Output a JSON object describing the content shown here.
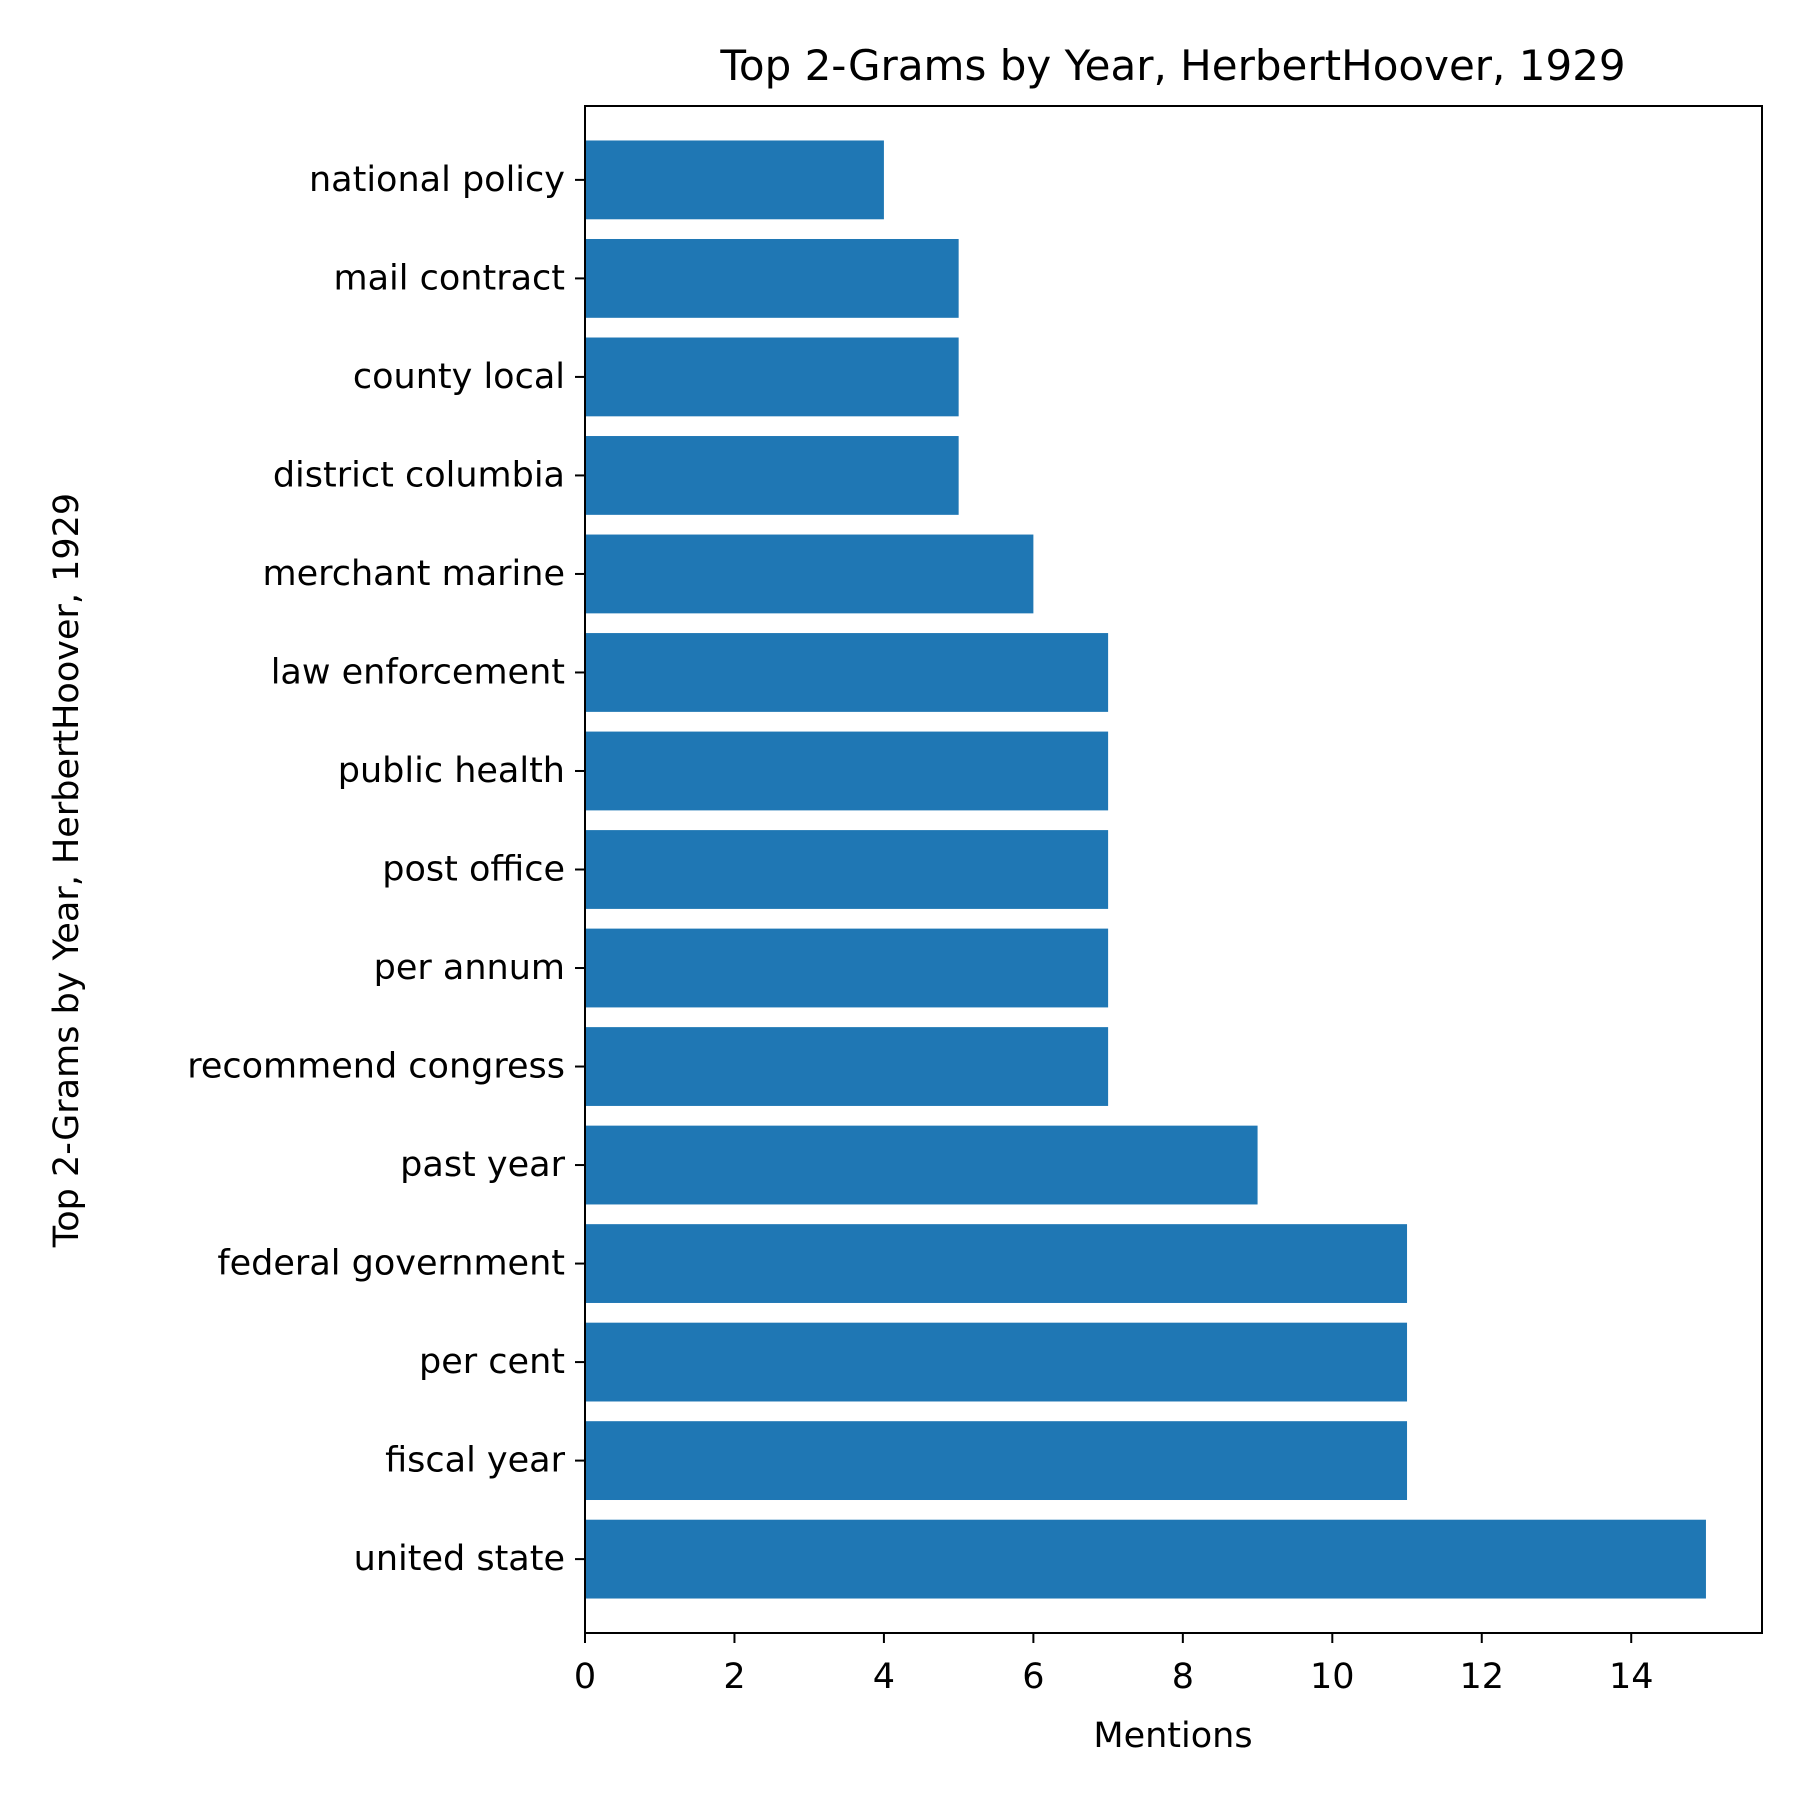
{
  "chart_data": {
    "type": "bar",
    "orientation": "horizontal",
    "title": "Top 2-Grams by Year, HerbertHoover, 1929",
    "xlabel": "Mentions",
    "ylabel": "Top 2-Grams by Year, HerbertHoover, 1929",
    "categories": [
      "united state",
      "fiscal year",
      "per cent",
      "federal government",
      "past year",
      "recommend congress",
      "per annum",
      "post office",
      "public health",
      "law enforcement",
      "merchant marine",
      "district columbia",
      "county local",
      "mail contract",
      "national policy"
    ],
    "values": [
      15,
      11,
      11,
      11,
      9,
      7,
      7,
      7,
      7,
      7,
      6,
      5,
      5,
      5,
      4
    ],
    "xlim": [
      0,
      15.75
    ],
    "xticks": [
      0,
      2,
      4,
      6,
      8,
      10,
      12,
      14
    ],
    "bar_color": "#1f77b4",
    "grid": false,
    "legend": "none"
  }
}
